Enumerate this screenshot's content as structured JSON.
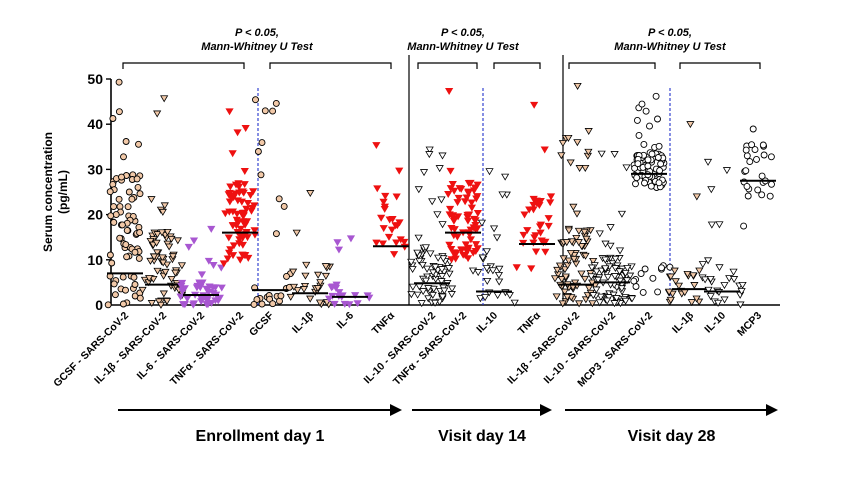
{
  "chart_data": {
    "type": "scatter",
    "ylabel": "Serum concentration (pg/mL)",
    "ylabel_lines": [
      "Serum concentration",
      "(pg/mL)"
    ],
    "ylim": [
      0,
      50
    ],
    "yticks": [
      0,
      10,
      20,
      30,
      40,
      50
    ],
    "categories": [
      "GCSF - SARS-CoV-2",
      "IL-1β - SARS-CoV-2",
      "IL-6 - SARS-CoV-2",
      "TNFα - SARS-CoV-2",
      "GCSF",
      "IL-1β",
      "IL-6",
      "TNFα",
      "IL-10 - SARS-CoV-2",
      "TNFα - SARS-CoV-2",
      "IL-10",
      "TNFα",
      "IL-1β - SARS-CoV-2",
      "IL-10 - SARS-CoV-2",
      "MCP3 - SARS-CoV-2",
      "IL-1β",
      "IL-10",
      "MCP3"
    ],
    "medians": [
      7,
      4.5,
      2.2,
      16,
      3.3,
      2.6,
      1.8,
      13,
      4.8,
      16,
      3,
      13.5,
      4.5,
      5,
      29,
      3.5,
      3,
      27.5
    ],
    "groups": [
      {
        "label": "Enrollment day 1",
        "categories": [
          0,
          1,
          2,
          3,
          4,
          5,
          6,
          7
        ]
      },
      {
        "label": "Visit day 14",
        "categories": [
          8,
          9,
          10,
          11
        ]
      },
      {
        "label": "Visit day 28",
        "categories": [
          12,
          13,
          14,
          15,
          16,
          17
        ]
      }
    ],
    "annotations": [
      {
        "line1": "P < 0.05,",
        "line2": "Mann-Whitney U Test"
      },
      {
        "line1": "P < 0.05,",
        "line2": "Mann-Whitney U Test"
      },
      {
        "line1": "P < 0.05,",
        "line2": "Mann-Whitney U Test"
      }
    ],
    "colors": {
      "tan": "#f2c9a8",
      "purple": "#a857d1",
      "red": "#ee1111",
      "white": "#ffffff",
      "axis": "#000000",
      "divider": "#2233cc"
    },
    "marker_styles": [
      "circle-tan",
      "triangle-tan",
      "triangle-purple",
      "triangle-red",
      "circle-tan",
      "triangle-tan",
      "triangle-purple",
      "triangle-red",
      "triangle-white",
      "triangle-red",
      "triangle-white",
      "triangle-red",
      "triangle-tan",
      "triangle-white",
      "circle-white",
      "triangle-tan",
      "triangle-white",
      "circle-white"
    ]
  }
}
